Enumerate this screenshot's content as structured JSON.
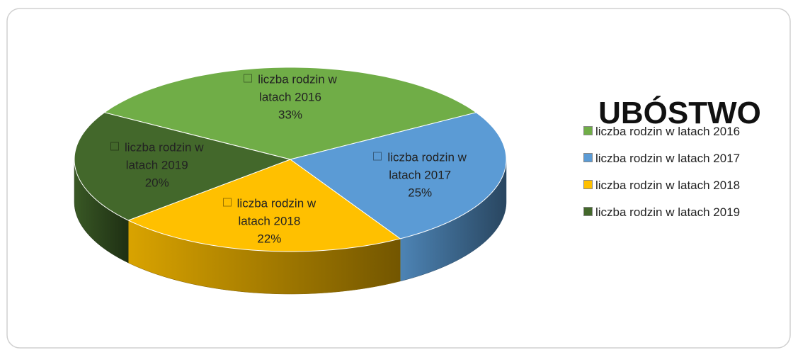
{
  "chart_data": {
    "type": "pie",
    "title": "UBÓSTWO",
    "categories": [
      "liczba rodzin w latach 2016",
      "liczba rodzin w latach 2017",
      "liczba rodzin w latach 2018",
      "liczba rodzin w latach 2019"
    ],
    "values": [
      33,
      25,
      22,
      20
    ],
    "value_labels": [
      "33%",
      "25%",
      "22%",
      "20%"
    ],
    "colors": [
      "#70ad47",
      "#5b9bd5",
      "#ffc000",
      "#43682b"
    ],
    "legend": "right"
  }
}
